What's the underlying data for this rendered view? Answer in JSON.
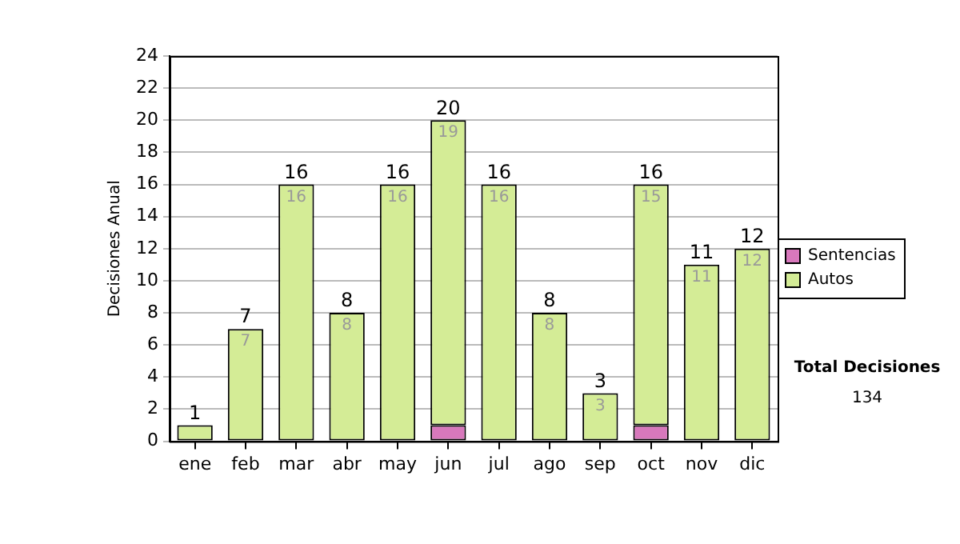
{
  "chart_data": {
    "type": "bar",
    "stacked": true,
    "ylabel": "Decisiones Anual",
    "categories": [
      "ene",
      "feb",
      "mar",
      "abr",
      "may",
      "jun",
      "jul",
      "ago",
      "sep",
      "oct",
      "nov",
      "dic"
    ],
    "series": [
      {
        "name": "Sentencias",
        "color": "#d878bc",
        "values": [
          0,
          0,
          0,
          0,
          0,
          1,
          0,
          0,
          0,
          1,
          0,
          0
        ]
      },
      {
        "name": "Autos",
        "color": "#d4ec96",
        "values": [
          1,
          7,
          16,
          8,
          16,
          19,
          16,
          8,
          3,
          15,
          11,
          12
        ],
        "value_labels": [
          null,
          "7",
          "16",
          "8",
          "16",
          "19",
          "16",
          "8",
          "3",
          "15",
          "11",
          "12"
        ]
      }
    ],
    "totals": [
      "1",
      "7",
      "16",
      "8",
      "16",
      "20",
      "16",
      "8",
      "3",
      "16",
      "11",
      "12"
    ],
    "ylim": [
      0,
      24
    ],
    "yticks": [
      0,
      2,
      4,
      6,
      8,
      10,
      12,
      14,
      16,
      18,
      20,
      22,
      24
    ],
    "grid": "y",
    "legend": "right",
    "annotations": [
      "Total Decisiones",
      "134"
    ]
  }
}
